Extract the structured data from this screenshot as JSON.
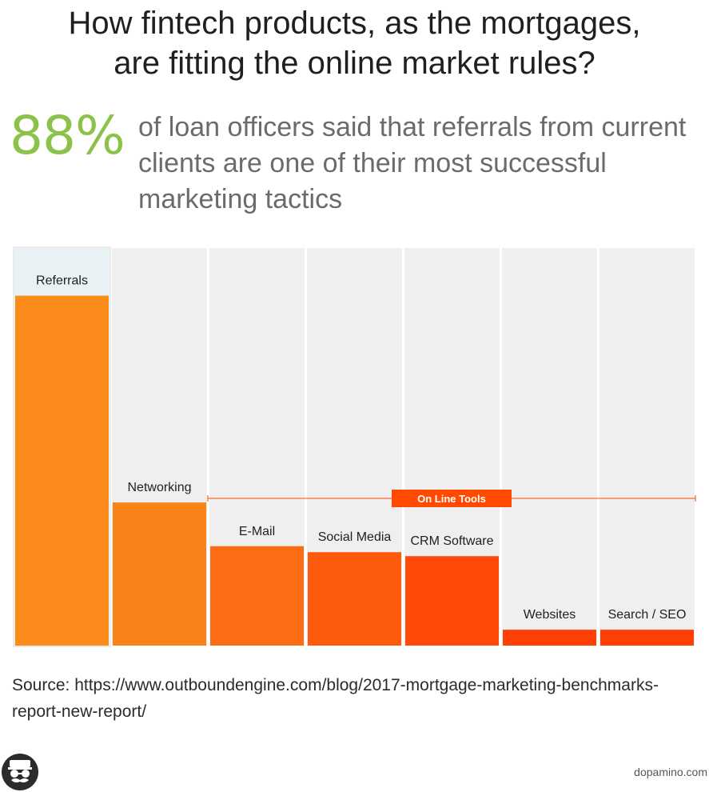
{
  "header": {
    "title_line1": "How fintech products, as the mortgages,",
    "title_line2": "are fitting the online market rules?"
  },
  "stat": {
    "value": "88%",
    "text": "of loan officers said that referrals from current clients are one of their most successful marketing tactics"
  },
  "chart_data": {
    "type": "bar",
    "categories": [
      "Referrals",
      "Networking",
      "E-Mail",
      "Social Media",
      "CRM Software",
      "Websites",
      "Search / SEO"
    ],
    "values": [
      88,
      36,
      25,
      23.5,
      22.5,
      4,
      4
    ],
    "ylim": [
      0,
      100
    ],
    "bar_colors": [
      "#fb8c1c",
      "#fb8119",
      "#fc6c14",
      "#fe5a0e",
      "#ff4a09",
      "#ff3f05",
      "#ff3f05"
    ],
    "highlight": "Referrals",
    "annotation": {
      "label": "On Line Tools",
      "from": "E-Mail",
      "to": "Search / SEO"
    },
    "column_bg": "#efefef",
    "highlight_bg": "#e8f2f5",
    "annotation_color": "#ff4a00"
  },
  "source": "Source: https://www.outboundengine.com/blog/2017-mortgage-marketing-benchmarks-report-new-report/",
  "footer": {
    "brand": "dopamino.com",
    "logo_icon": "mustache-face-icon"
  }
}
